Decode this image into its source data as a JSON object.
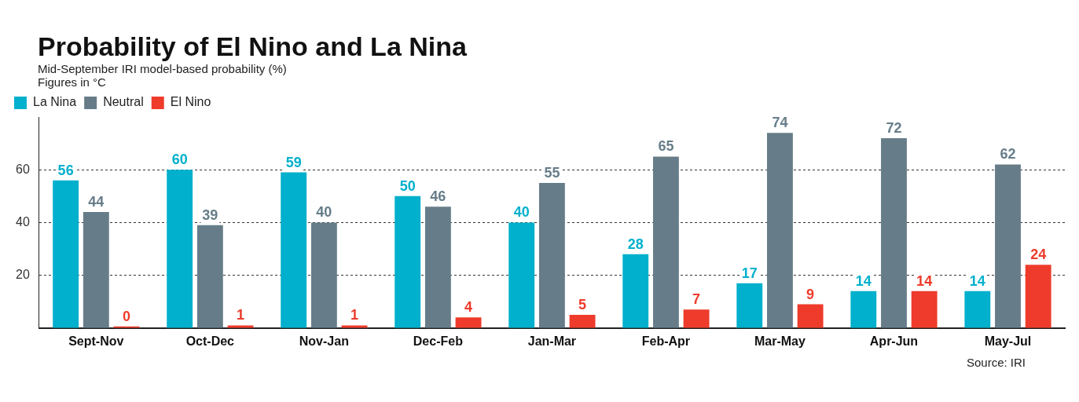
{
  "chart_data": {
    "type": "bar",
    "title": "Probability of El Nino and La Nina",
    "subtitle": "Mid-September IRI model-based probability (%)",
    "annotations": [
      "Figures in °C",
      "Source: IRI"
    ],
    "categories": [
      "Sept-Nov",
      "Oct-Dec",
      "Nov-Jan",
      "Dec-Feb",
      "Jan-Mar",
      "Feb-Apr",
      "Mar-May",
      "Apr-Jun",
      "May-Jul"
    ],
    "series": [
      {
        "name": "La Nina",
        "color": "#00b0cc",
        "values": [
          56,
          60,
          59,
          50,
          40,
          28,
          17,
          14,
          14
        ]
      },
      {
        "name": "Neutral",
        "color": "#667d89",
        "values": [
          44,
          39,
          40,
          46,
          55,
          65,
          74,
          72,
          62
        ]
      },
      {
        "name": "El Nino",
        "color": "#ee3b2b",
        "values": [
          0,
          1,
          1,
          4,
          5,
          7,
          9,
          14,
          24
        ]
      }
    ],
    "ylim": [
      0,
      80
    ],
    "yticks": [
      20,
      40,
      60
    ],
    "grid": "y",
    "legend": "top left",
    "data_labels": true
  }
}
